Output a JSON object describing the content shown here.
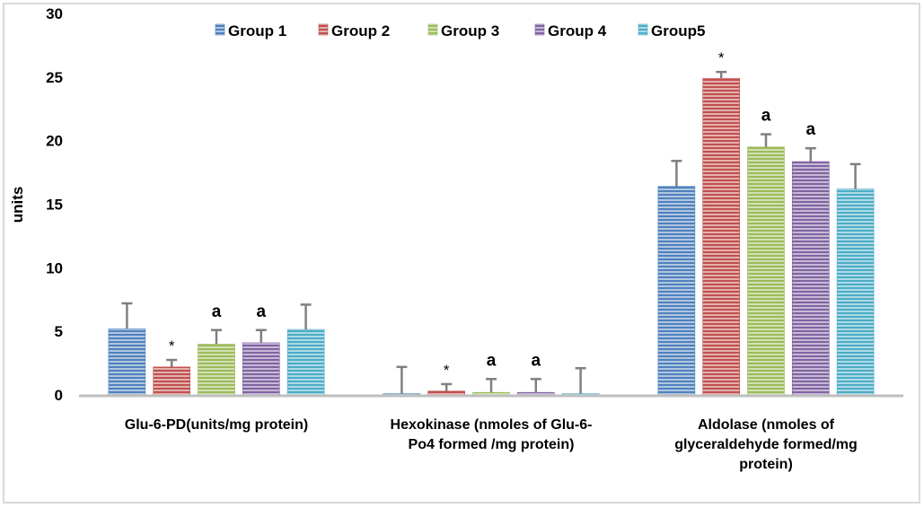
{
  "chart_data": {
    "type": "bar",
    "title": "",
    "xlabel": "",
    "ylabel": "units",
    "ylim": [
      0,
      30
    ],
    "yticks": [
      0,
      5,
      10,
      15,
      20,
      25,
      30
    ],
    "grid": false,
    "legend_position": "top-center",
    "categories": [
      "Glu-6-PD(units/mg protein)",
      "Hexokinase (nmoles of Glu-6-Po4 formed /mg protein)",
      "Aldolase (nmoles of glyceraldehyde formed/mg protein)"
    ],
    "category_label_lines": [
      [
        "Glu-6-PD(units/mg protein)"
      ],
      [
        "Hexokinase (nmoles of Glu-6-",
        "Po4 formed /mg protein)"
      ],
      [
        "Aldolase (nmoles of",
        "glyceraldehyde formed/mg",
        "protein)"
      ]
    ],
    "series": [
      {
        "name": "Group 1",
        "color": "#4f81bd",
        "values": [
          5.2,
          0.1,
          16.4
        ],
        "errors": [
          2.0,
          2.1,
          2.0
        ],
        "annotations": [
          "",
          "",
          ""
        ]
      },
      {
        "name": "Group 2",
        "color": "#c0504d",
        "values": [
          2.2,
          0.3,
          24.9
        ],
        "errors": [
          0.55,
          0.55,
          0.5
        ],
        "annotations": [
          "*",
          "*",
          "*"
        ]
      },
      {
        "name": "Group 3",
        "color": "#9bbb59",
        "values": [
          4.0,
          0.2,
          19.5
        ],
        "errors": [
          1.1,
          1.05,
          1.0
        ],
        "annotations": [
          "a",
          "a",
          "a"
        ]
      },
      {
        "name": "Group 4",
        "color": "#8064a2",
        "values": [
          4.1,
          0.2,
          18.35
        ],
        "errors": [
          1.0,
          1.05,
          1.05
        ],
        "annotations": [
          "a",
          "a",
          "a"
        ]
      },
      {
        "name": "Group5",
        "color": "#4bacc6",
        "values": [
          5.15,
          0.1,
          16.2
        ],
        "errors": [
          1.95,
          2.0,
          1.95
        ],
        "annotations": [
          "",
          "",
          ""
        ]
      }
    ]
  }
}
